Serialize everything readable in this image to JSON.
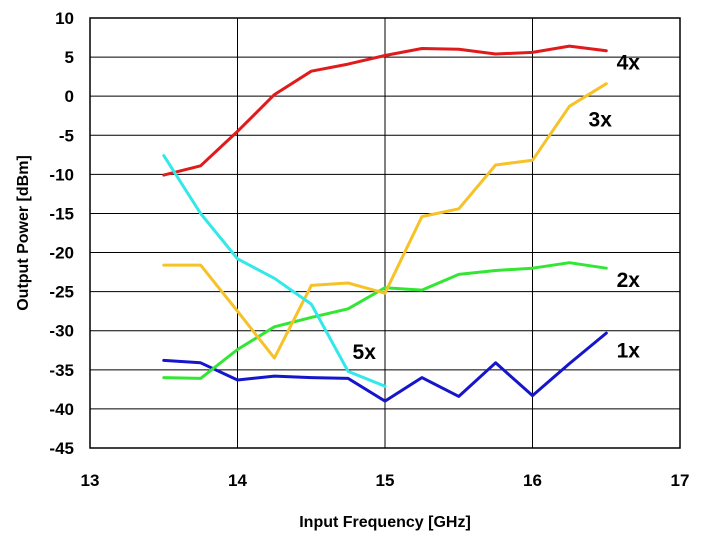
{
  "chart_data": {
    "type": "line",
    "title": "",
    "xlabel": "Input Frequency [GHz]",
    "ylabel": "Output Power [dBm]",
    "xlim": [
      13,
      17
    ],
    "ylim": [
      -45,
      10
    ],
    "xticks": [
      13,
      14,
      15,
      16,
      17
    ],
    "yticks": [
      10,
      5,
      0,
      -5,
      -10,
      -15,
      -20,
      -25,
      -30,
      -35,
      -40,
      -45
    ],
    "grid": true,
    "legend": "none",
    "series": [
      {
        "name": "1x",
        "color": "#1515cc",
        "x": [
          13.5,
          13.75,
          14.0,
          14.25,
          14.5,
          14.75,
          15.0,
          15.25,
          15.5,
          15.75,
          16.0,
          16.25,
          16.5
        ],
        "y": [
          -33.8,
          -34.1,
          -36.3,
          -35.8,
          -36.0,
          -36.1,
          -39.0,
          -36.0,
          -38.4,
          -34.1,
          -38.3,
          -34.2,
          -30.3
        ]
      },
      {
        "name": "2x",
        "color": "#33e633",
        "x": [
          13.5,
          13.75,
          14.0,
          14.25,
          14.5,
          14.75,
          15.0,
          15.25,
          15.5,
          15.75,
          16.0,
          16.25,
          16.5
        ],
        "y": [
          -36.0,
          -36.1,
          -32.4,
          -29.5,
          -28.3,
          -27.2,
          -24.5,
          -24.8,
          -22.8,
          -22.3,
          -22.0,
          -21.3,
          -22.0
        ]
      },
      {
        "name": "3x",
        "color": "#f5c227",
        "x": [
          13.5,
          13.75,
          14.0,
          14.25,
          14.5,
          14.75,
          15.0,
          15.25,
          15.5,
          15.75,
          16.0,
          16.25,
          16.5
        ],
        "y": [
          -21.6,
          -21.6,
          -27.5,
          -33.5,
          -24.2,
          -23.9,
          -25.2,
          -15.4,
          -14.4,
          -8.8,
          -8.2,
          -1.3,
          1.6
        ]
      },
      {
        "name": "4x",
        "color": "#e01b1b",
        "x": [
          13.5,
          13.75,
          14.0,
          14.25,
          14.5,
          14.75,
          15.0,
          15.25,
          15.5,
          15.75,
          16.0,
          16.25,
          16.5
        ],
        "y": [
          -10.1,
          -8.9,
          -4.5,
          0.2,
          3.2,
          4.1,
          5.2,
          6.1,
          6.0,
          5.4,
          5.6,
          6.4,
          5.8
        ]
      },
      {
        "name": "5x",
        "color": "#33e8e8",
        "x": [
          13.5,
          13.75,
          14.0,
          14.25,
          14.5,
          14.75,
          15.0
        ],
        "y": [
          -7.6,
          -15.0,
          -20.8,
          -23.3,
          -26.6,
          -35.2,
          -37.1
        ]
      }
    ],
    "series_labels": [
      {
        "text": "1x",
        "x": 16.57,
        "y": -32.5
      },
      {
        "text": "2x",
        "x": 16.57,
        "y": -23.5
      },
      {
        "text": "3x",
        "x": 16.38,
        "y": -3.0
      },
      {
        "text": "4x",
        "x": 16.57,
        "y": 4.3
      },
      {
        "text": "5x",
        "x": 14.78,
        "y": -32.7
      }
    ]
  }
}
